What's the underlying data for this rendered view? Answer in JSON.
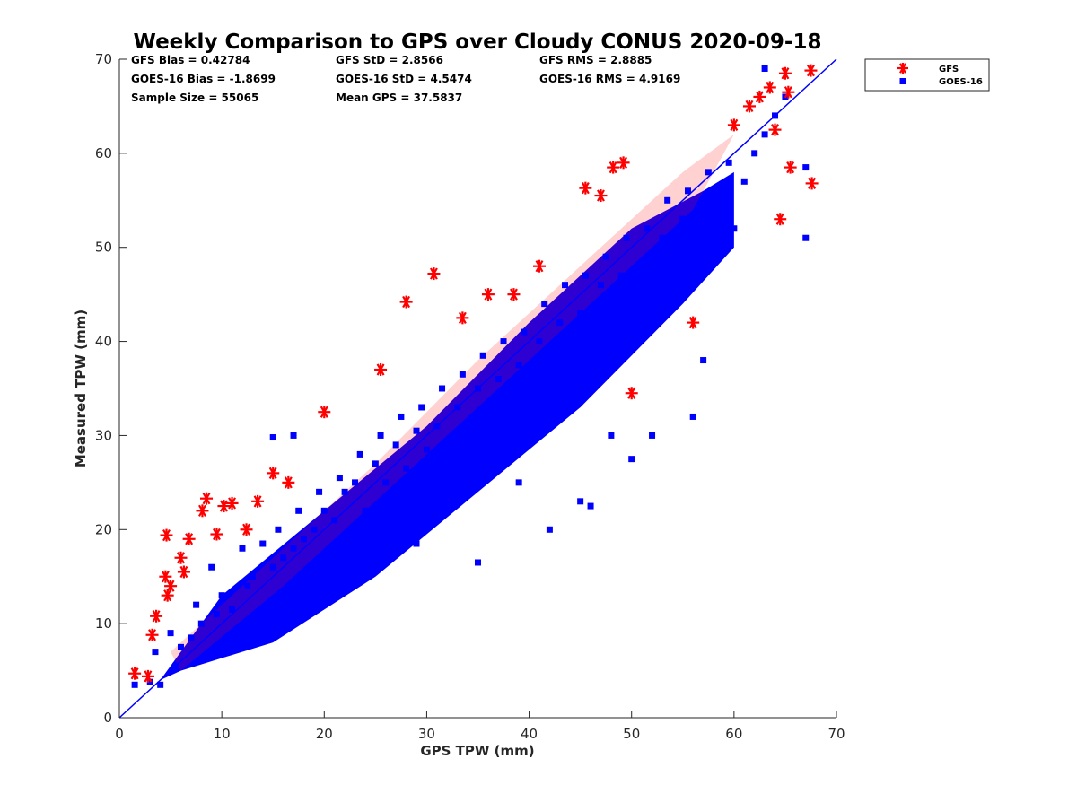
{
  "chart_data": {
    "type": "scatter",
    "title": "Weekly Comparison to GPS over Cloudy CONUS 2020-09-18",
    "xlabel": "GPS TPW (mm)",
    "ylabel": "Measured TPW (mm)",
    "xlim": [
      0,
      70
    ],
    "ylim": [
      0,
      70
    ],
    "xticks": [
      0,
      10,
      20,
      30,
      40,
      50,
      60,
      70
    ],
    "yticks": [
      0,
      10,
      20,
      30,
      40,
      50,
      60,
      70
    ],
    "grid": false,
    "legend_position": "outside-top-right",
    "reference_line": {
      "x": [
        0,
        70
      ],
      "y": [
        0,
        70
      ],
      "color": "#0000ff"
    },
    "stats": [
      "GFS Bias = 0.42784",
      "GFS StD = 2.8566",
      "GFS RMS = 2.8885",
      "GOES-16 Bias = -1.8699",
      "GOES-16 StD = 4.5474",
      "GOES-16 RMS = 4.9169",
      "Sample Size = 55065",
      "Mean GPS = 37.5837"
    ],
    "series": [
      {
        "name": "GFS",
        "marker": "asterisk",
        "color": "#ff0000",
        "x": [
          1.5,
          2.8,
          3.2,
          3.6,
          4.5,
          4.6,
          4.7,
          5.0,
          6.0,
          6.3,
          6.8,
          8.1,
          8.5,
          9.5,
          10.2,
          11.0,
          12.4,
          13.5,
          15.0,
          16.5,
          20.0,
          25.5,
          28.0,
          30.7,
          33.5,
          36.0,
          38.5,
          41.0,
          45.5,
          47.0,
          48.2,
          49.2,
          50.0,
          56.0,
          60.0,
          61.5,
          62.5,
          63.5,
          64.0,
          64.5,
          65.0,
          65.3,
          65.5,
          67.5,
          67.6
        ],
        "y": [
          4.7,
          4.4,
          8.8,
          10.8,
          15.0,
          19.4,
          13.0,
          14.0,
          17.0,
          15.5,
          19.0,
          22.0,
          23.3,
          19.5,
          22.5,
          22.8,
          20.0,
          23.0,
          26.0,
          25.0,
          32.5,
          37.0,
          44.2,
          47.2,
          42.5,
          45.0,
          45.0,
          48.0,
          56.3,
          55.5,
          58.5,
          59.0,
          34.5,
          42.0,
          63.0,
          65.0,
          66.0,
          67.0,
          62.5,
          53.0,
          68.5,
          66.5,
          58.5,
          68.8,
          56.8
        ]
      },
      {
        "name": "GOES-16",
        "marker": "square",
        "color": "#0000ff",
        "x": [
          1.5,
          3.0,
          3.5,
          4.0,
          5.0,
          5.5,
          6.0,
          7.0,
          7.5,
          8.0,
          9.0,
          9.5,
          10.0,
          11.0,
          12.0,
          12.5,
          13.0,
          14.0,
          15.0,
          15.5,
          16.0,
          17.0,
          17.5,
          18.0,
          19.0,
          19.5,
          20.0,
          21.0,
          21.5,
          22.0,
          23.0,
          23.5,
          24.0,
          25.0,
          25.5,
          26.0,
          27.0,
          27.5,
          28.0,
          29.0,
          29.5,
          30.0,
          31.0,
          31.5,
          32.0,
          33.0,
          33.5,
          34.0,
          35.0,
          35.5,
          36.0,
          37.0,
          37.5,
          38.0,
          39.0,
          39.5,
          40.0,
          41.0,
          41.5,
          42.0,
          43.0,
          43.5,
          44.0,
          45.0,
          45.5,
          46.0,
          47.0,
          47.5,
          48.0,
          49.0,
          49.5,
          50.0,
          51.0,
          51.5,
          52.0,
          53.0,
          53.5,
          54.0,
          55.0,
          55.5,
          56.0,
          57.0,
          57.5,
          58.0,
          59.0,
          59.5,
          60.0,
          61.0,
          62.0,
          63.0,
          64.0,
          65.0,
          67.0,
          15.0,
          17.0,
          19.0,
          29.0,
          35.0,
          39.0,
          42.0,
          45.0,
          46.0,
          48.0,
          50.0,
          52.0,
          56.0,
          57.0,
          63.0,
          67.0
        ],
        "y": [
          3.5,
          3.8,
          7.0,
          3.5,
          9.0,
          5.5,
          7.5,
          8.5,
          12.0,
          10.0,
          16.0,
          11.0,
          13.0,
          11.5,
          18.0,
          14.0,
          15.0,
          18.5,
          16.0,
          20.0,
          17.0,
          18.0,
          22.0,
          19.0,
          20.0,
          24.0,
          22.0,
          21.0,
          25.5,
          24.0,
          25.0,
          28.0,
          22.0,
          27.0,
          30.0,
          25.0,
          29.0,
          32.0,
          26.5,
          30.5,
          33.0,
          28.5,
          31.0,
          35.0,
          29.0,
          33.0,
          36.5,
          31.0,
          35.0,
          38.5,
          32.5,
          36.0,
          40.0,
          34.0,
          37.5,
          41.0,
          36.0,
          40.0,
          44.0,
          37.0,
          42.0,
          46.0,
          39.0,
          43.0,
          47.0,
          41.0,
          46.0,
          49.0,
          43.0,
          47.0,
          51.0,
          45.0,
          48.0,
          52.0,
          47.0,
          51.0,
          55.0,
          49.0,
          53.0,
          56.0,
          47.0,
          55.0,
          58.0,
          50.0,
          56.0,
          59.0,
          52.0,
          57.0,
          60.0,
          62.0,
          64.0,
          66.0,
          51.0,
          29.8,
          30.0,
          16.0,
          18.5,
          16.5,
          25.0,
          20.0,
          23.0,
          22.5,
          30.0,
          27.5,
          30.0,
          32.0,
          38.0,
          69.0,
          58.5
        ]
      }
    ]
  }
}
